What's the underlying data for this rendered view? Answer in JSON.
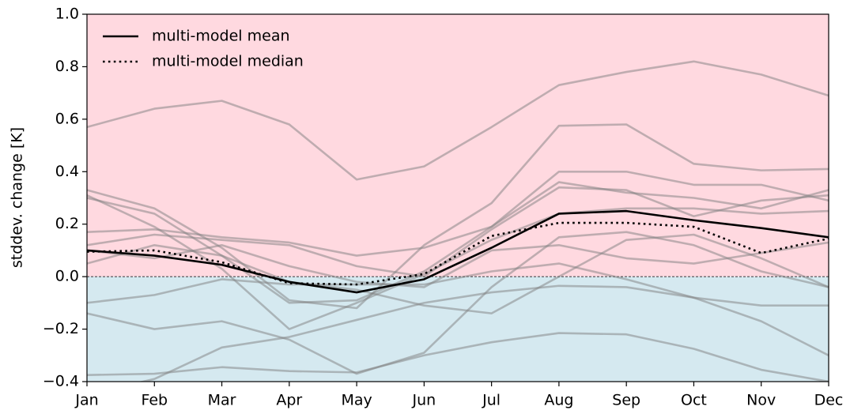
{
  "chart_data": {
    "type": "line",
    "ylabel": "stddev. change [K]",
    "categories": [
      "Jan",
      "Feb",
      "Mar",
      "Apr",
      "May",
      "Jun",
      "Jul",
      "Aug",
      "Sep",
      "Oct",
      "Nov",
      "Dec"
    ],
    "ylim": [
      -0.4,
      1.0
    ],
    "yticks": [
      {
        "value": -0.4,
        "label": "−0.4"
      },
      {
        "value": -0.2,
        "label": "−0.2"
      },
      {
        "value": 0,
        "label": "0.0"
      },
      {
        "value": 0.2,
        "label": "0.2"
      },
      {
        "value": 0.4,
        "label": "0.4"
      },
      {
        "value": 0.6,
        "label": "0.6"
      },
      {
        "value": 0.8,
        "label": "0.8"
      },
      {
        "value": 1.0,
        "label": "1.0"
      }
    ],
    "hline": 0,
    "positive_color": "#ffd9e0",
    "negative_color": "#d5e9f0",
    "legend": "upper left",
    "series": [
      {
        "color": "#808080",
        "alpha": 0.5,
        "values": [
          0.57,
          0.64,
          0.67,
          0.58,
          0.37,
          0.42,
          0.57,
          0.73,
          0.78,
          0.82,
          0.77,
          0.69
        ]
      },
      {
        "color": "#808080",
        "alpha": 0.5,
        "values": [
          0.33,
          0.26,
          0.11,
          -0.09,
          -0.12,
          0.12,
          0.28,
          0.575,
          0.58,
          0.43,
          0.405,
          0.41
        ]
      },
      {
        "color": "#808080",
        "alpha": 0.5,
        "values": [
          0.3,
          0.24,
          0.08,
          -0.1,
          -0.09,
          0.02,
          0.19,
          0.4,
          0.4,
          0.35,
          0.35,
          0.29
        ]
      },
      {
        "color": "#808080",
        "alpha": 0.5,
        "values": [
          0.17,
          0.18,
          0.15,
          0.13,
          0.08,
          0.11,
          0.19,
          0.36,
          0.32,
          0.3,
          0.26,
          0.33
        ]
      },
      {
        "color": "#808080",
        "alpha": 0.5,
        "values": [
          0.12,
          0.16,
          0.14,
          0.12,
          0.04,
          0.0,
          0.18,
          0.34,
          0.33,
          0.23,
          0.29,
          0.31
        ]
      },
      {
        "color": "#808080",
        "alpha": 0.5,
        "values": [
          -0.1,
          -0.07,
          -0.01,
          -0.03,
          -0.03,
          -0.03,
          0.02,
          0.05,
          -0.01,
          -0.08,
          -0.17,
          -0.3
        ]
      },
      {
        "color": "#808080",
        "alpha": 0.5,
        "values": [
          -0.14,
          -0.2,
          -0.17,
          -0.24,
          -0.37,
          -0.29,
          -0.04,
          0.15,
          0.17,
          0.12,
          0.02,
          -0.04
        ]
      },
      {
        "color": "#808080",
        "alpha": 0.5,
        "values": [
          -0.375,
          -0.37,
          -0.345,
          -0.36,
          -0.365,
          -0.3,
          -0.25,
          -0.215,
          -0.22,
          -0.275,
          -0.355,
          -0.4
        ]
      },
      {
        "color": "#808080",
        "alpha": 0.5,
        "values": [
          -0.45,
          -0.39,
          -0.27,
          -0.23,
          -0.165,
          -0.1,
          -0.06,
          -0.035,
          -0.04,
          -0.08,
          -0.11,
          -0.11
        ]
      },
      {
        "color": "#808080",
        "alpha": 0.5,
        "values": [
          0.05,
          0.12,
          0.08,
          -0.02,
          -0.05,
          -0.11,
          -0.14,
          0.0,
          0.14,
          0.16,
          0.07,
          -0.04
        ]
      },
      {
        "color": "#808080",
        "alpha": 0.5,
        "values": [
          0.1,
          0.07,
          0.12,
          0.04,
          -0.02,
          -0.04,
          0.1,
          0.12,
          0.07,
          0.05,
          0.09,
          0.13
        ]
      },
      {
        "color": "#808080",
        "alpha": 0.5,
        "values": [
          0.31,
          0.19,
          0.03,
          -0.2,
          -0.1,
          0.01,
          0.14,
          0.24,
          0.26,
          0.26,
          0.24,
          0.25
        ]
      },
      {
        "name": "multi-model mean",
        "color": "#000000",
        "style": "solid",
        "values": [
          0.1,
          0.08,
          0.045,
          -0.02,
          -0.06,
          -0.01,
          0.11,
          0.24,
          0.25,
          0.215,
          0.185,
          0.15
        ]
      },
      {
        "name": "multi-model median",
        "color": "#000000",
        "style": "dotted",
        "values": [
          0.095,
          0.1,
          0.055,
          -0.025,
          -0.03,
          0.01,
          0.155,
          0.205,
          0.205,
          0.19,
          0.09,
          0.145
        ]
      }
    ]
  }
}
